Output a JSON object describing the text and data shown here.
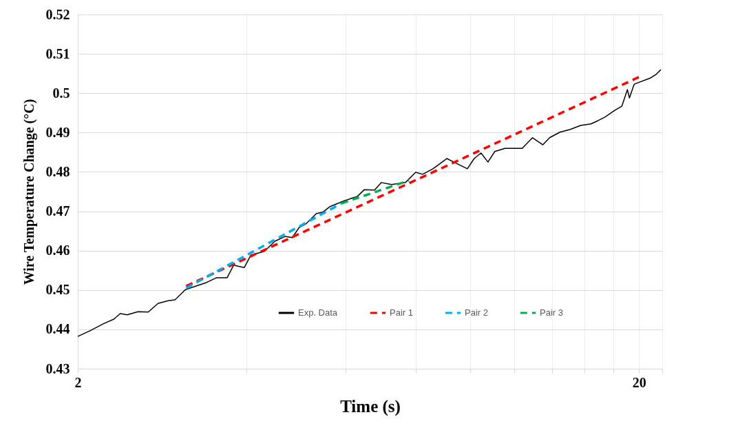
{
  "chart_data": {
    "type": "line",
    "xlabel": "Time (s)",
    "ylabel": "Wire Temperature Change (°C)",
    "log": "x",
    "grid": true,
    "legend": "bottom",
    "xlim": [
      2,
      22
    ],
    "xticks": [
      2,
      {
        "value": 4,
        "label": null
      },
      {
        "value": 6,
        "label": null
      },
      {
        "value": 8,
        "label": null
      },
      {
        "value": 10,
        "label": null
      },
      {
        "value": 12,
        "label": null
      },
      {
        "value": 14,
        "label": null
      },
      {
        "value": 16,
        "label": null
      },
      {
        "value": 18,
        "label": null
      },
      20,
      {
        "value": 22,
        "label": null
      }
    ],
    "ylim": [
      0.43,
      0.52
    ],
    "yticks": [
      0.43,
      0.44,
      0.45,
      0.46,
      0.47,
      0.48,
      0.49,
      0.5,
      0.51,
      0.52
    ],
    "series": [
      {
        "name": "Exp. Data",
        "color": "#000000",
        "line_style": "solid",
        "x": [
          2.0,
          2.1,
          2.22,
          2.32,
          2.38,
          2.45,
          2.56,
          2.67,
          2.78,
          2.9,
          2.98,
          3.11,
          3.25,
          3.39,
          3.53,
          3.69,
          3.79,
          3.96,
          4.07,
          4.3,
          4.49,
          4.68,
          4.82,
          4.96,
          5.1,
          5.32,
          5.47,
          5.63,
          5.95,
          6.3,
          6.48,
          6.76,
          6.95,
          7.25,
          7.67,
          8.0,
          8.23,
          8.59,
          9.09,
          9.35,
          9.89,
          10.17,
          10.46,
          10.76,
          11.07,
          11.54,
          12.39,
          12.92,
          13.48,
          13.86,
          14.46,
          15.09,
          15.74,
          16.42,
          16.89,
          17.37,
          18.12,
          18.64,
          19.07,
          19.23,
          19.61,
          20.98,
          21.46,
          21.88
        ],
        "values": [
          0.4382,
          0.4396,
          0.4414,
          0.4426,
          0.444,
          0.4437,
          0.4445,
          0.4444,
          0.4466,
          0.4473,
          0.4475,
          0.4501,
          0.451,
          0.4519,
          0.4531,
          0.4531,
          0.4563,
          0.4557,
          0.4589,
          0.4598,
          0.4624,
          0.4636,
          0.4633,
          0.4659,
          0.4668,
          0.4694,
          0.4698,
          0.4712,
          0.4726,
          0.4738,
          0.4755,
          0.4754,
          0.4773,
          0.4768,
          0.4773,
          0.4799,
          0.4794,
          0.4808,
          0.4834,
          0.4825,
          0.4808,
          0.4834,
          0.4848,
          0.4825,
          0.4852,
          0.486,
          0.486,
          0.4887,
          0.4869,
          0.4887,
          0.4901,
          0.4908,
          0.4918,
          0.4922,
          0.493,
          0.4939,
          0.4957,
          0.4967,
          0.5009,
          0.4988,
          0.5023,
          0.5039,
          0.5048,
          0.506
        ]
      },
      {
        "name": "Pair 1",
        "color": "#ff0000",
        "line_style": "dashed",
        "x": [
          3.12,
          20
        ],
        "values": [
          0.451,
          0.5041
        ]
      },
      {
        "name": "Pair 2",
        "color": "#00b0f0",
        "line_style": "dashed",
        "x": [
          3.12,
          5.9
        ],
        "values": [
          0.4505,
          0.472
        ]
      },
      {
        "name": "Pair 3",
        "color": "#00b050",
        "line_style": "dashed",
        "x": [
          5.9,
          7.78
        ],
        "values": [
          0.472,
          0.4778
        ]
      }
    ]
  }
}
